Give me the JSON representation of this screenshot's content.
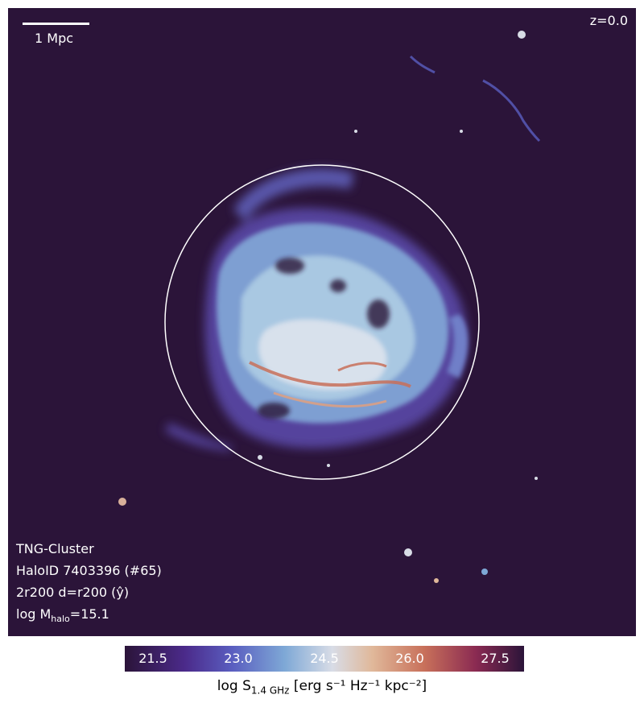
{
  "figure": {
    "redshift": "z=0.0",
    "scale_bar_label": "1 Mpc",
    "info": {
      "simulation": "TNG-Cluster",
      "halo": "HaloID 7403396 (#65)",
      "projection": "2r200 d=r200 (ŷ)",
      "mass_prefix": "log M",
      "mass_sub": "halo",
      "mass_value": "=15.1"
    }
  },
  "colorbar": {
    "ticks": [
      "21.5",
      "23.0",
      "24.5",
      "26.0",
      "27.5"
    ],
    "label_prefix": "log S",
    "label_sub": "1.4 GHz",
    "label_units": " [erg s⁻¹ Hz⁻¹ kpc⁻²]"
  },
  "colors": {
    "background": "#2b1439",
    "low": "#4b2a8a",
    "mid": "#7ea8d6",
    "high": "#c8705a"
  }
}
